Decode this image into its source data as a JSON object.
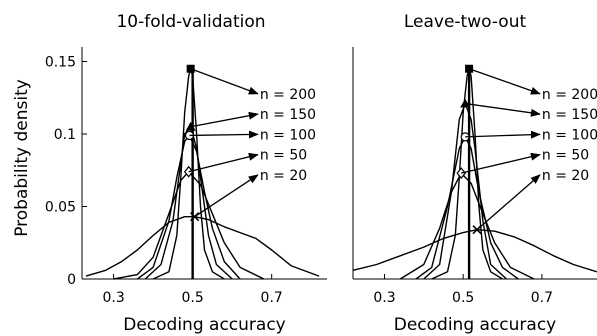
{
  "ylabel": "Probability density",
  "chart_data": [
    {
      "type": "line",
      "title": "10-fold-validation",
      "xlabel": "Decoding accuracy",
      "xlim": [
        0.22,
        0.84
      ],
      "ylim": [
        0,
        0.16
      ],
      "xticks": [
        "0.3",
        "0.5",
        "0.7"
      ],
      "yticks": [
        "0",
        "0.05",
        "0.1",
        "0.15"
      ],
      "vline": 0.5,
      "series": [
        {
          "marker": "square",
          "peak": [
            0.495,
            0.145
          ],
          "x": [
            0.4,
            0.44,
            0.46,
            0.47,
            0.48,
            0.49,
            0.495,
            0.5,
            0.51,
            0.52,
            0.53,
            0.55,
            0.58
          ],
          "y": [
            0,
            0.005,
            0.03,
            0.07,
            0.115,
            0.14,
            0.145,
            0.14,
            0.1,
            0.05,
            0.02,
            0.005,
            0
          ]
        },
        {
          "marker": "triangle",
          "peak": [
            0.495,
            0.105
          ],
          "x": [
            0.38,
            0.42,
            0.45,
            0.47,
            0.48,
            0.495,
            0.51,
            0.52,
            0.54,
            0.56,
            0.6
          ],
          "y": [
            0,
            0.01,
            0.04,
            0.08,
            0.1,
            0.105,
            0.09,
            0.07,
            0.03,
            0.01,
            0
          ]
        },
        {
          "marker": "circle",
          "peak": [
            0.492,
            0.099
          ],
          "x": [
            0.36,
            0.4,
            0.44,
            0.46,
            0.48,
            0.492,
            0.51,
            0.53,
            0.55,
            0.58,
            0.62
          ],
          "y": [
            0,
            0.008,
            0.04,
            0.07,
            0.095,
            0.099,
            0.088,
            0.06,
            0.035,
            0.012,
            0
          ]
        },
        {
          "marker": "diamond",
          "peak": [
            0.49,
            0.074
          ],
          "x": [
            0.3,
            0.36,
            0.4,
            0.44,
            0.47,
            0.49,
            0.52,
            0.55,
            0.58,
            0.62,
            0.68
          ],
          "y": [
            0,
            0.003,
            0.015,
            0.045,
            0.068,
            0.074,
            0.065,
            0.045,
            0.025,
            0.008,
            0
          ]
        },
        {
          "marker": "cross",
          "peak": [
            0.505,
            0.043
          ],
          "x": [
            0.23,
            0.28,
            0.32,
            0.36,
            0.4,
            0.44,
            0.48,
            0.505,
            0.54,
            0.58,
            0.62,
            0.66,
            0.7,
            0.75,
            0.82
          ],
          "y": [
            0.002,
            0.006,
            0.012,
            0.02,
            0.03,
            0.039,
            0.043,
            0.043,
            0.041,
            0.036,
            0.032,
            0.028,
            0.02,
            0.009,
            0.002
          ]
        }
      ],
      "annotations": [
        {
          "text": "n = 200",
          "label_x": 0.67,
          "label_y": 0.125,
          "series": 0
        },
        {
          "text": "n = 150",
          "label_x": 0.67,
          "label_y": 0.111,
          "series": 1
        },
        {
          "text": "n = 100",
          "label_x": 0.67,
          "label_y": 0.097,
          "series": 2
        },
        {
          "text": "n = 50",
          "label_x": 0.67,
          "label_y": 0.083,
          "series": 3
        },
        {
          "text": "n = 20",
          "label_x": 0.67,
          "label_y": 0.069,
          "series": 4
        }
      ]
    },
    {
      "type": "line",
      "title": "Leave-two-out",
      "xlabel": "Decoding accuracy",
      "xlim": [
        0.22,
        0.84
      ],
      "ylim": [
        0,
        0.16
      ],
      "xticks": [
        "0.3",
        "0.5",
        "0.7"
      ],
      "yticks": [],
      "vline": 0.515,
      "series": [
        {
          "marker": "square",
          "peak": [
            0.515,
            0.145
          ],
          "x": [
            0.42,
            0.46,
            0.48,
            0.49,
            0.5,
            0.51,
            0.515,
            0.52,
            0.53,
            0.54,
            0.55,
            0.57,
            0.6
          ],
          "y": [
            0,
            0.005,
            0.03,
            0.07,
            0.115,
            0.14,
            0.145,
            0.14,
            0.1,
            0.05,
            0.02,
            0.005,
            0
          ]
        },
        {
          "marker": "triangle",
          "peak": [
            0.505,
            0.121
          ],
          "x": [
            0.4,
            0.44,
            0.47,
            0.49,
            0.505,
            0.52,
            0.53,
            0.55,
            0.57,
            0.61
          ],
          "y": [
            0,
            0.01,
            0.06,
            0.11,
            0.121,
            0.11,
            0.09,
            0.04,
            0.01,
            0
          ]
        },
        {
          "marker": "circle",
          "peak": [
            0.505,
            0.098
          ],
          "x": [
            0.38,
            0.42,
            0.46,
            0.49,
            0.505,
            0.52,
            0.54,
            0.57,
            0.6,
            0.64
          ],
          "y": [
            0,
            0.008,
            0.05,
            0.09,
            0.098,
            0.09,
            0.06,
            0.025,
            0.008,
            0
          ]
        },
        {
          "marker": "diamond",
          "peak": [
            0.495,
            0.073
          ],
          "x": [
            0.34,
            0.4,
            0.44,
            0.47,
            0.495,
            0.52,
            0.55,
            0.58,
            0.62,
            0.68
          ],
          "y": [
            0,
            0.01,
            0.035,
            0.06,
            0.073,
            0.066,
            0.045,
            0.025,
            0.008,
            0
          ]
        },
        {
          "marker": "cross",
          "peak": [
            0.535,
            0.034
          ],
          "x": [
            0.22,
            0.28,
            0.34,
            0.4,
            0.45,
            0.5,
            0.535,
            0.58,
            0.63,
            0.68,
            0.73,
            0.78,
            0.84
          ],
          "y": [
            0.006,
            0.01,
            0.016,
            0.022,
            0.028,
            0.032,
            0.034,
            0.033,
            0.029,
            0.023,
            0.016,
            0.01,
            0.005
          ]
        }
      ],
      "annotations": [
        {
          "text": "n = 200",
          "label_x": 0.7,
          "label_y": 0.125,
          "series": 0
        },
        {
          "text": "n = 150",
          "label_x": 0.7,
          "label_y": 0.111,
          "series": 1
        },
        {
          "text": "n = 100",
          "label_x": 0.7,
          "label_y": 0.097,
          "series": 2
        },
        {
          "text": "n = 50",
          "label_x": 0.7,
          "label_y": 0.083,
          "series": 3
        },
        {
          "text": "n = 20",
          "label_x": 0.7,
          "label_y": 0.069,
          "series": 4
        }
      ]
    }
  ]
}
